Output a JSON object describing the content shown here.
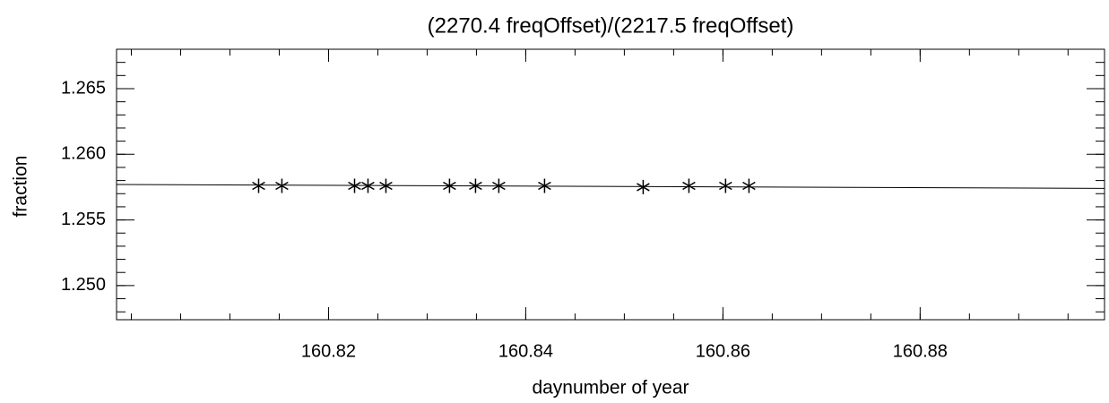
{
  "chart_data": {
    "type": "scatter",
    "title": "(2270.4 freqOffset)/(2217.5 freqOffset)",
    "xlabel": "daynumber of year",
    "ylabel": "fraction",
    "color": "#000000",
    "points": {
      "x": [
        160.81291,
        160.81527,
        160.82264,
        160.824,
        160.82582,
        160.83227,
        160.83491,
        160.83727,
        160.84191,
        160.85191,
        160.85655,
        160.86027,
        160.86264
      ],
      "values": [
        1.2576,
        1.2576,
        1.2576,
        1.2576,
        1.2576,
        1.2576,
        1.2576,
        1.2576,
        1.2576,
        1.2575,
        1.2576,
        1.2576,
        1.2576
      ]
    },
    "fit": {
      "x": [
        160.7985,
        160.8987
      ],
      "values": [
        1.2577,
        1.2574
      ]
    },
    "xlim": [
      160.7985,
      160.8987
    ],
    "xticks": [
      160.82,
      160.84,
      160.86,
      160.88
    ],
    "ylim": [
      1.2474,
      1.268
    ],
    "yticks": [
      {
        "value": 1.25,
        "label": "1.250"
      },
      1.255,
      {
        "value": 1.26,
        "label": "1.260"
      },
      1.265
    ]
  }
}
